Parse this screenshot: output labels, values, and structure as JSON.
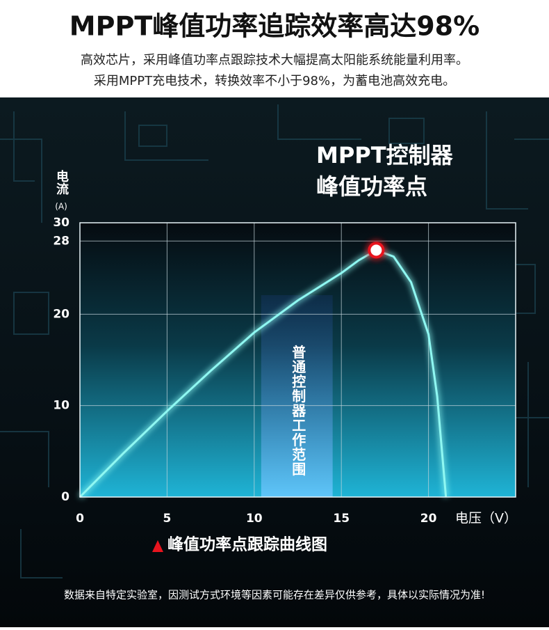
{
  "header": {
    "title": "MPPT峰值功率追踪效率高达98%",
    "subtitle_lines": [
      "高效芯片，采用峰值功率点跟踪技术大幅提高太阳能系统能量利用率。",
      "采用MPPT充电技术，转换效率不小于98%，为蓄电池高效充电。"
    ]
  },
  "chart_data": {
    "type": "line",
    "title": "峰值功率点跟踪曲线图",
    "x_label": "电压（V）",
    "y_label": "电流",
    "y_unit": "(A)",
    "x": [
      0,
      2.5,
      5,
      7.5,
      10,
      12.5,
      15,
      16,
      17,
      18,
      19,
      20,
      20.5,
      21
    ],
    "series": [
      {
        "color": "#8ff8f2",
        "values": [
          0,
          4.8,
          9.4,
          13.8,
          18,
          21.5,
          24.5,
          25.9,
          27,
          26.3,
          23.5,
          17.8,
          11,
          0
        ]
      }
    ],
    "xlim": [
      0,
      25
    ],
    "xticks": [
      0,
      5,
      10,
      15,
      20
    ],
    "ylim": [
      0,
      30
    ],
    "yticks": [
      0,
      10,
      20,
      28,
      30
    ],
    "grid": true,
    "peak_label": [
      "MPPT控制器",
      "峰值功率点"
    ],
    "peak_color": "#e8141e",
    "band": {
      "x": [
        10.4,
        14.5
      ],
      "label": "普通控制器工作范围"
    }
  },
  "footer": "数据来自特定实验室，因测试方式环境等因素可能存在差异仅供参考，具体以实际情况为准!"
}
